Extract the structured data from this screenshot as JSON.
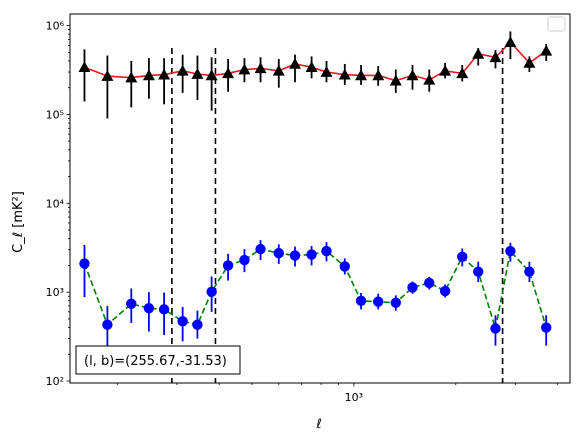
{
  "chart_data": {
    "type": "scatter",
    "title": "",
    "xlabel": "ℓ",
    "ylabel": "C_ℓ  [mK²]",
    "xscale": "log",
    "yscale": "log",
    "xlim": [
      145,
      4350
    ],
    "ylim": [
      95,
      1350000
    ],
    "x_ticks": [
      {
        "value": 1000,
        "label": "10³"
      }
    ],
    "y_ticks": [
      {
        "value": 100,
        "label": "10²"
      },
      {
        "value": 1000,
        "label": "10³"
      },
      {
        "value": 10000,
        "label": "10⁴"
      },
      {
        "value": 100000,
        "label": "10⁵"
      },
      {
        "value": 1000000,
        "label": "10⁶"
      }
    ],
    "grid": false,
    "legend": {
      "placement": "top-right",
      "entries": []
    },
    "annotation": "(l, b)=(255.67,-31.53)",
    "vlines": [
      290,
      390,
      2750
    ],
    "series": [
      {
        "marker": "triangle",
        "marker_color": "#000000",
        "line_color": "#e31a1c",
        "line_style": "solid",
        "x": [
          160,
          187,
          220,
          248,
          275,
          312,
          345,
          380,
          425,
          475,
          530,
          600,
          670,
          750,
          830,
          940,
          1050,
          1180,
          1330,
          1490,
          1670,
          1860,
          2090,
          2330,
          2620,
          2900,
          3300,
          3700
        ],
        "y": [
          340000,
          270000,
          260000,
          275000,
          280000,
          310000,
          285000,
          275000,
          290000,
          320000,
          330000,
          310000,
          370000,
          340000,
          300000,
          280000,
          275000,
          275000,
          240000,
          275000,
          245000,
          310000,
          290000,
          480000,
          440000,
          650000,
          380000,
          520000
        ],
        "y_err_low": [
          140000,
          90000,
          120000,
          150000,
          130000,
          175000,
          145000,
          110000,
          180000,
          230000,
          230000,
          200000,
          230000,
          255000,
          230000,
          215000,
          215000,
          210000,
          175000,
          190000,
          180000,
          255000,
          235000,
          355000,
          330000,
          420000,
          300000,
          400000
        ],
        "y_err_high": [
          540000,
          460000,
          400000,
          430000,
          430000,
          470000,
          460000,
          440000,
          420000,
          430000,
          440000,
          420000,
          470000,
          450000,
          400000,
          370000,
          360000,
          350000,
          320000,
          360000,
          320000,
          380000,
          360000,
          560000,
          530000,
          860000,
          450000,
          620000
        ]
      },
      {
        "marker": "circle",
        "marker_color": "#0000ff",
        "line_color": "#008000",
        "line_style": "dashed",
        "x": [
          160,
          187,
          220,
          248,
          275,
          312,
          345,
          380,
          425,
          475,
          530,
          600,
          670,
          750,
          830,
          940,
          1050,
          1180,
          1330,
          1490,
          1670,
          1860,
          2090,
          2330,
          2620,
          2900,
          3300,
          3700
        ],
        "y": [
          2100,
          430,
          740,
          660,
          640,
          470,
          430,
          1010,
          2000,
          2300,
          3050,
          2750,
          2580,
          2650,
          2900,
          1950,
          800,
          780,
          760,
          1130,
          1270,
          1030,
          2500,
          1700,
          390,
          2900,
          1700,
          400
        ],
        "y_err_low": [
          880,
          240,
          450,
          360,
          330,
          280,
          300,
          600,
          1350,
          1680,
          2300,
          2080,
          1940,
          2000,
          2220,
          1580,
          640,
          640,
          620,
          960,
          1070,
          870,
          1950,
          1300,
          250,
          2200,
          1300,
          250
        ],
        "y_err_high": [
          3400,
          700,
          1100,
          1000,
          990,
          680,
          620,
          1500,
          2700,
          3050,
          3850,
          3450,
          3250,
          3300,
          3650,
          2400,
          980,
          960,
          920,
          1320,
          1490,
          1220,
          3100,
          2200,
          550,
          3600,
          2200,
          550
        ]
      }
    ]
  }
}
